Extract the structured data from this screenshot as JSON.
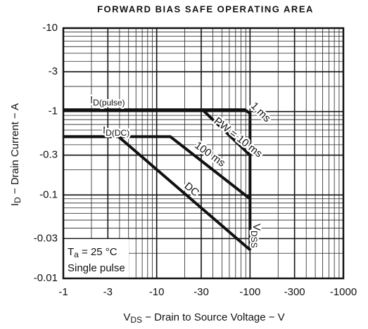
{
  "chart_data": {
    "type": "line",
    "title": "FORWARD BIAS SAFE OPERATING AREA",
    "x_label": {
      "main": "V",
      "sub": "DS",
      "rest": " − Drain to Source Voltage − V"
    },
    "y_label": {
      "main": "I",
      "sub": "D",
      "rest": " − Drain Current − A"
    },
    "log_x": true,
    "log_y": true,
    "grid": true,
    "minor_grid": true,
    "xlim": [
      -1,
      -1000
    ],
    "ylim": [
      -0.01,
      -10
    ],
    "xticks": [
      -1,
      -3,
      -10,
      -30,
      -100,
      -300,
      -1000
    ],
    "yticks": [
      -0.01,
      -0.03,
      -0.1,
      -0.3,
      -1,
      -3,
      -10
    ],
    "series": [
      {
        "name": "1 ms",
        "color": "#111111",
        "x": [
          -1,
          -88,
          -100,
          -100
        ],
        "values": [
          -1.05,
          -1.05,
          -0.95,
          -0.3
        ]
      },
      {
        "name": "PW = 10 ms",
        "color": "#111111",
        "x": [
          -31,
          -100,
          -100
        ],
        "values": [
          -1.05,
          -0.3,
          -0.09
        ]
      },
      {
        "name": "100 ms",
        "color": "#111111",
        "x": [
          -1,
          -14,
          -100,
          -100
        ],
        "values": [
          -0.5,
          -0.5,
          -0.09,
          -0.022
        ]
      },
      {
        "name": "DC",
        "color": "#111111",
        "x": [
          -1,
          -3.9,
          -100
        ],
        "values": [
          -0.5,
          -0.5,
          -0.022
        ]
      }
    ],
    "annotations": [
      {
        "main": "I",
        "sub": "D(pulse)"
      },
      {
        "main": "I",
        "sub": "D(DC)"
      },
      {
        "main": "V",
        "sub": "DSS"
      },
      {
        "main": "T",
        "sub": "a",
        "rest": " = 25 °C"
      },
      {
        "text": "Single pulse"
      }
    ]
  }
}
